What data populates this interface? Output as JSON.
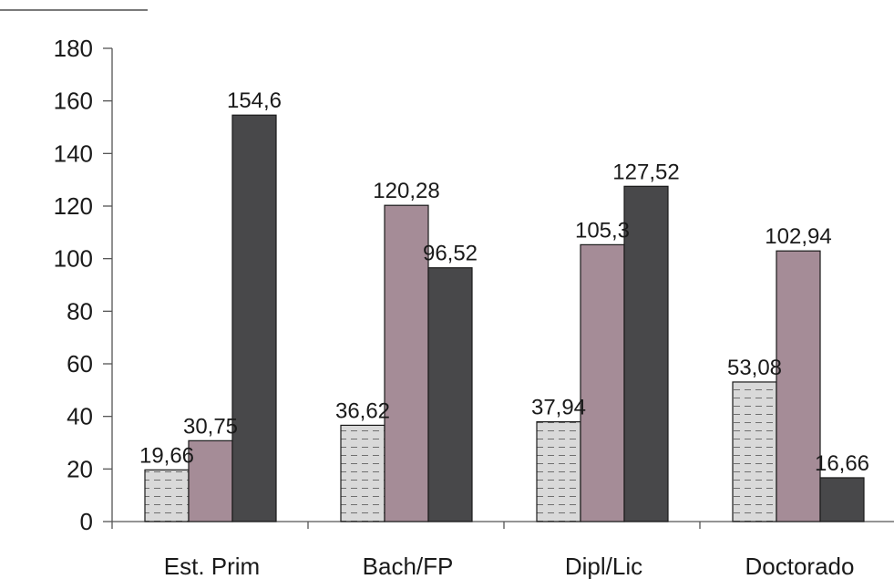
{
  "chart_data": {
    "type": "bar",
    "categories": [
      "Est. Prim",
      "Bach/FP",
      "Dipl/Lic",
      "Doctorado"
    ],
    "series": [
      {
        "values": [
          19.66,
          36.62,
          37.94,
          53.08
        ],
        "labels": [
          "19,66",
          "36,62",
          "37,94",
          "53,08"
        ],
        "color": "#d9d9d9",
        "pattern": "dashed-horizontal"
      },
      {
        "values": [
          30.75,
          120.28,
          105.3,
          102.94
        ],
        "labels": [
          "30,75",
          "120,28",
          "105,3",
          "102,94"
        ],
        "color": "#a58c97"
      },
      {
        "values": [
          154.6,
          96.52,
          127.52,
          16.66
        ],
        "labels": [
          "154,6",
          "96,52",
          "127,52",
          "16,66"
        ],
        "color": "#48484a"
      }
    ],
    "ylim": [
      0,
      180
    ],
    "yticks": [
      "0",
      "20",
      "40",
      "60",
      "80",
      "100",
      "120",
      "140",
      "160",
      "180"
    ],
    "grid": false,
    "legend": "none"
  }
}
